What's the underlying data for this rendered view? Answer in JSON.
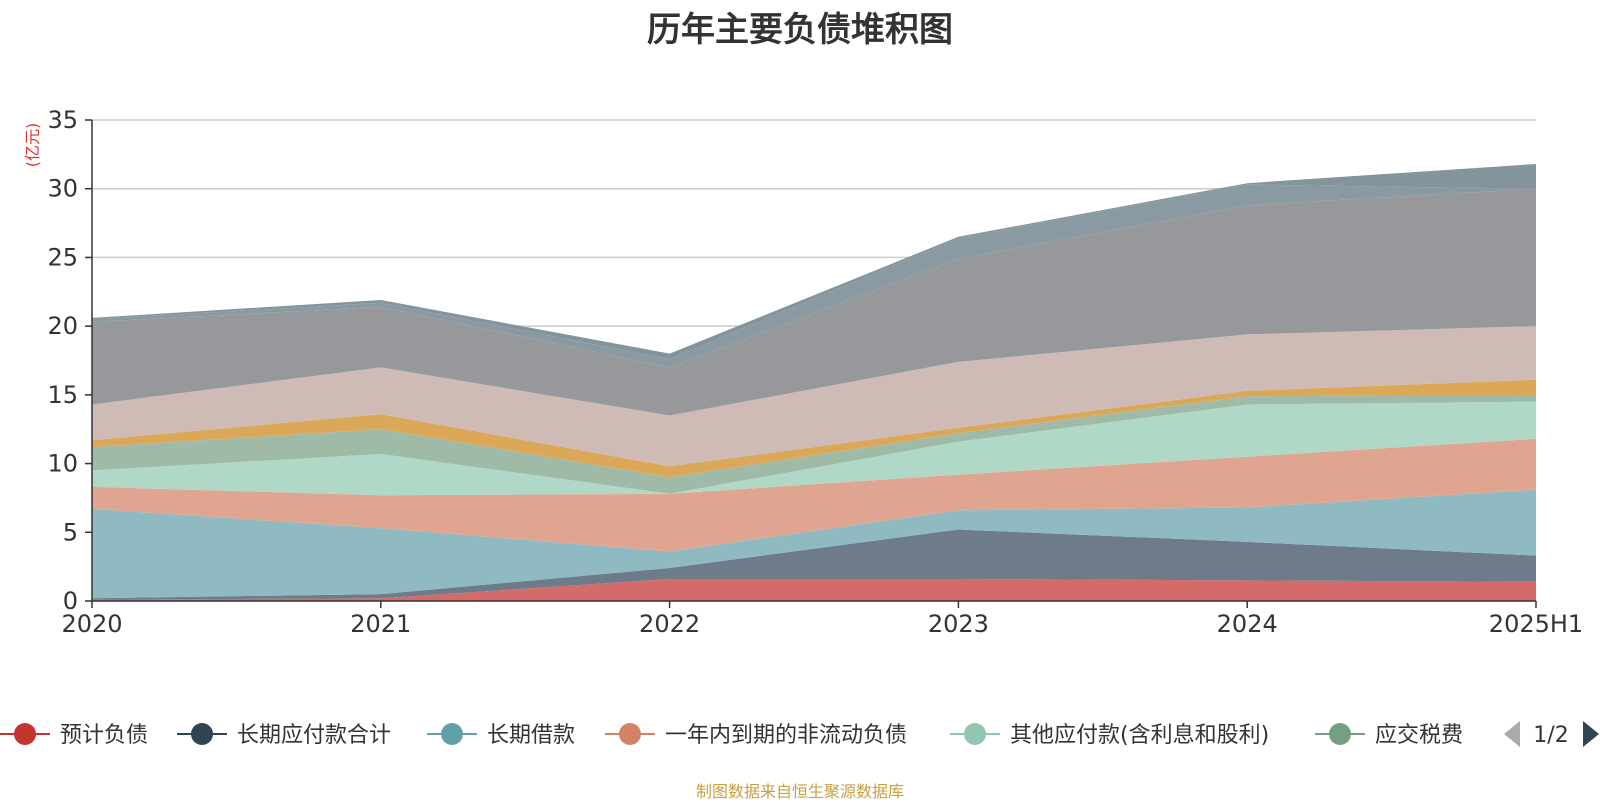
{
  "chart_data": {
    "type": "area",
    "title": "历年主要负债堆积图",
    "ylabel": "(亿元)",
    "ylim": [
      0,
      35
    ],
    "y_ticks": [
      "0",
      "5",
      "10",
      "15",
      "20",
      "25",
      "30",
      "35"
    ],
    "categories": [
      "2020",
      "2021",
      "2022",
      "2023",
      "2024",
      "2025H1"
    ],
    "grid": true,
    "stacked": true,
    "series": [
      {
        "name": "预计负债",
        "values": [
          0.1,
          0.2,
          1.6,
          1.6,
          1.5,
          1.4
        ],
        "color": "#d46a6a",
        "legend_color": "#c23531"
      },
      {
        "name": "长期应付款合计",
        "values": [
          0.1,
          0.3,
          0.8,
          3.6,
          2.8,
          1.9
        ],
        "color": "#6e7b88",
        "legend_color": "#2f4554"
      },
      {
        "name": "长期借款",
        "values": [
          6.5,
          4.8,
          1.2,
          1.4,
          2.5,
          4.8
        ],
        "color": "#8fbac2",
        "legend_color": "#61a0a8"
      },
      {
        "name": "一年内到期的非流动负债",
        "values": [
          1.6,
          2.4,
          4.2,
          2.6,
          3.7,
          3.7
        ],
        "color": "#e0a591",
        "legend_color": "#d48265"
      },
      {
        "name": "其他应付款(含利息和股利)",
        "values": [
          1.2,
          3.0,
          0.0,
          2.4,
          3.8,
          2.7
        ],
        "color": "#b0d8c6",
        "legend_color": "#91c7ae"
      },
      {
        "name": "应交税费",
        "values": [
          1.7,
          1.8,
          1.2,
          0.6,
          0.6,
          0.5
        ],
        "color": "#9fbba8",
        "legend_color": "#749f83"
      },
      {
        "name": "",
        "values": [
          0.5,
          1.1,
          0.8,
          0.4,
          0.4,
          1.1
        ],
        "color": "#dba85a",
        "legend_color": "#ca8622"
      },
      {
        "name": "",
        "values": [
          2.6,
          3.4,
          3.7,
          4.8,
          4.1,
          3.9
        ],
        "color": "#cfbbb6",
        "legend_color": "#bda29a"
      },
      {
        "name": "",
        "values": [
          6.0,
          4.4,
          3.5,
          7.5,
          9.4,
          10.0
        ],
        "color": "#96989c",
        "legend_color": "#6e7074"
      },
      {
        "name": "",
        "values": [
          0.2,
          0.3,
          0.6,
          1.5,
          1.5,
          0.0
        ],
        "color": "#8a9aa2",
        "legend_color": "#546570"
      },
      {
        "name": "",
        "values": [
          0.1,
          0.2,
          0.4,
          0.1,
          0.1,
          1.8
        ],
        "color": "#84949c",
        "legend_color": "#546570"
      }
    ]
  },
  "legend": {
    "page": "1/2"
  },
  "source": "制图数据来自恒生聚源数据库"
}
